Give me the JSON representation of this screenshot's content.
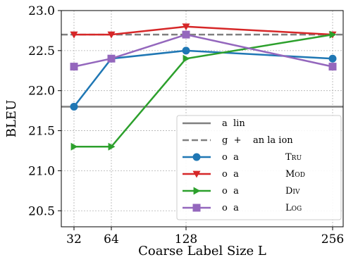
{
  "chart_data": {
    "type": "line",
    "xlabel": "Coarse Label Size L",
    "ylabel": "BLEU",
    "x": [
      32,
      64,
      128,
      256
    ],
    "xticks": [
      "32",
      "64",
      "128",
      "256"
    ],
    "ylim": [
      20.3,
      23.0
    ],
    "yticks": [
      "20.5",
      "21.0",
      "21.5",
      "22.0",
      "22.5",
      "23.0"
    ],
    "grid": true,
    "legend_position": "lower-right",
    "reference_lines": [
      {
        "name": "a  lin",
        "value": 21.8,
        "color": "#808080",
        "style": "solid"
      },
      {
        "name": "g  +    an la ion",
        "value": 22.7,
        "color": "#808080",
        "style": "dashed"
      }
    ],
    "series": [
      {
        "name": "o  a",
        "suffix": "Tru",
        "color": "#1f77b4",
        "marker": "circle",
        "values": [
          21.8,
          22.4,
          22.5,
          22.4
        ]
      },
      {
        "name": "o  a",
        "suffix": "Mod",
        "color": "#d62728",
        "marker": "triangle-down",
        "values": [
          22.7,
          22.7,
          22.8,
          22.7
        ]
      },
      {
        "name": "o  a",
        "suffix": "Div",
        "color": "#2ca02c",
        "marker": "triangle-right",
        "values": [
          21.3,
          21.3,
          22.4,
          22.7
        ]
      },
      {
        "name": "o  a",
        "suffix": "Log",
        "color": "#9467bd",
        "marker": "square",
        "values": [
          22.3,
          22.4,
          22.7,
          22.3
        ]
      }
    ]
  }
}
